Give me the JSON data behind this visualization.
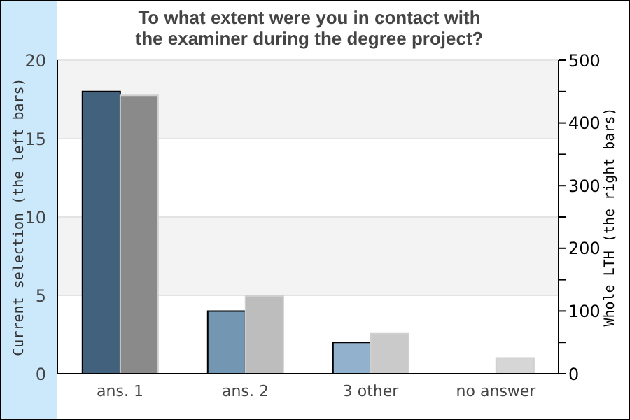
{
  "chart_data": {
    "type": "bar",
    "title": "To what extent were you in contact with\nthe examiner during the degree project?",
    "categories": [
      "ans. 1",
      "ans. 2",
      "3 other",
      "no answer"
    ],
    "series": [
      {
        "colors": [
          "#41617d",
          "#7396b2",
          "#91b1cc",
          "#91b1cc"
        ],
        "values": [
          18,
          4,
          2,
          0
        ]
      },
      {
        "colors": [
          "#8a8a8a",
          "#bdbdbd",
          "#cacaca",
          "#d6d6d6"
        ],
        "values": [
          444,
          124,
          64,
          25
        ],
        "axis": "y2"
      }
    ],
    "ylabel": "Current selection (the left bars)",
    "y2label": "Whole LTH (the right bars)",
    "ylim": [
      0,
      20
    ],
    "yticks": [
      0,
      5,
      10,
      15,
      20
    ],
    "y2lim": [
      0,
      500
    ],
    "y2ticks": [
      0,
      {
        "value": 50,
        "label": null
      },
      100,
      {
        "value": 150,
        "label": null
      },
      200,
      {
        "value": 250,
        "label": null
      },
      300,
      {
        "value": 350,
        "label": null
      },
      400,
      {
        "value": 450,
        "label": null
      },
      500
    ],
    "grid": "y"
  }
}
